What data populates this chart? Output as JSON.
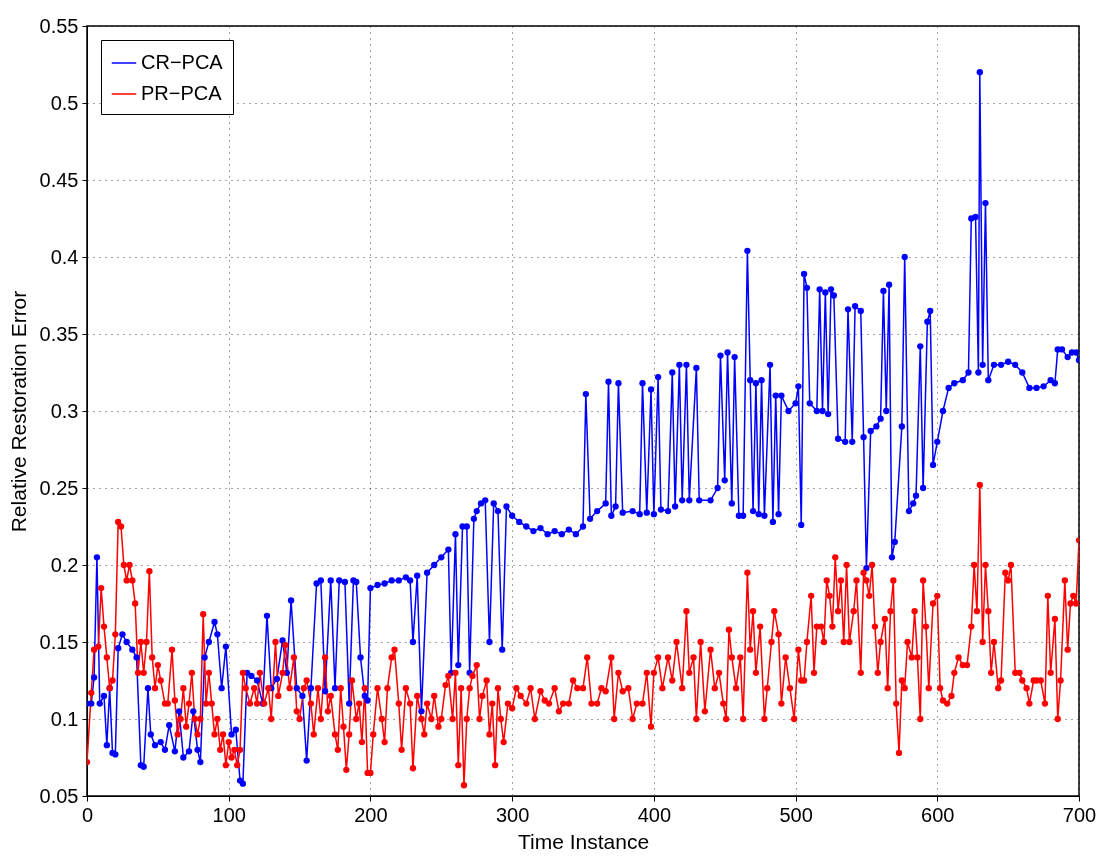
{
  "chart_data": {
    "type": "line",
    "xlabel": "Time Instance",
    "ylabel": "Relative Restoration Error",
    "xlim": [
      0,
      700
    ],
    "xticks": [
      0,
      100,
      200,
      300,
      400,
      500,
      600,
      700
    ],
    "ylim": [
      0.05,
      0.55
    ],
    "yticks": [
      0.05,
      0.1,
      0.15,
      0.2,
      0.25,
      0.3,
      0.35,
      0.4,
      0.45,
      0.5,
      0.55
    ],
    "grid": true,
    "legend": "top left",
    "marker": "circle",
    "line_style": "solid",
    "series": [
      {
        "name": "CR−PCA",
        "color": "#0000ff",
        "x": [
          0,
          3,
          5,
          7,
          9,
          12,
          14,
          16,
          18,
          20,
          22,
          25,
          28,
          32,
          35,
          38,
          40,
          43,
          45,
          48,
          52,
          55,
          58,
          62,
          65,
          68,
          72,
          75,
          78,
          80,
          83,
          86,
          90,
          92,
          95,
          98,
          102,
          105,
          108,
          110,
          113,
          116,
          120,
          124,
          127,
          130,
          134,
          138,
          141,
          144,
          148,
          152,
          155,
          158,
          162,
          165,
          168,
          172,
          175,
          178,
          182,
          185,
          188,
          190,
          193,
          196,
          198,
          200,
          205,
          210,
          215,
          220,
          225,
          228,
          230,
          233,
          236,
          240,
          245,
          250,
          255,
          257,
          260,
          262,
          265,
          268,
          270,
          273,
          275,
          278,
          281,
          284,
          287,
          290,
          293,
          296,
          300,
          305,
          310,
          315,
          320,
          325,
          330,
          335,
          340,
          345,
          350,
          352,
          355,
          360,
          366,
          368,
          370,
          373,
          375,
          378,
          385,
          390,
          392,
          395,
          398,
          400,
          403,
          405,
          410,
          413,
          415,
          418,
          420,
          423,
          425,
          430,
          432,
          440,
          445,
          447,
          450,
          452,
          455,
          457,
          460,
          463,
          466,
          468,
          470,
          472,
          474,
          476,
          478,
          482,
          484,
          486,
          488,
          490,
          495,
          500,
          502,
          504,
          506,
          508,
          510,
          515,
          517,
          519,
          521,
          523,
          525,
          527,
          530,
          535,
          537,
          540,
          542,
          546,
          548,
          550,
          553,
          557,
          560,
          562,
          564,
          566,
          568,
          570,
          575,
          577,
          580,
          583,
          585,
          588,
          590,
          593,
          595,
          597,
          600,
          604,
          608,
          612,
          618,
          622,
          624,
          627,
          629,
          630,
          632,
          634,
          636,
          640,
          645,
          650,
          655,
          660,
          665,
          670,
          675,
          680,
          683,
          685,
          688,
          692,
          695,
          698,
          700
        ],
        "values": [
          0.11,
          0.11,
          0.127,
          0.205,
          0.11,
          0.115,
          0.083,
          0.12,
          0.078,
          0.077,
          0.146,
          0.155,
          0.15,
          0.145,
          0.14,
          0.07,
          0.069,
          0.12,
          0.09,
          0.083,
          0.085,
          0.08,
          0.096,
          0.079,
          0.105,
          0.075,
          0.079,
          0.105,
          0.08,
          0.072,
          0.14,
          0.15,
          0.163,
          0.155,
          0.12,
          0.147,
          0.09,
          0.093,
          0.06,
          0.058,
          0.13,
          0.128,
          0.125,
          0.11,
          0.167,
          0.12,
          0.126,
          0.151,
          0.13,
          0.177,
          0.12,
          0.115,
          0.073,
          0.12,
          0.188,
          0.19,
          0.118,
          0.19,
          0.12,
          0.19,
          0.189,
          0.11,
          0.19,
          0.189,
          0.14,
          0.115,
          0.112,
          0.185,
          0.187,
          0.188,
          0.19,
          0.19,
          0.192,
          0.19,
          0.15,
          0.193,
          0.105,
          0.195,
          0.2,
          0.205,
          0.21,
          0.13,
          0.22,
          0.135,
          0.225,
          0.225,
          0.13,
          0.23,
          0.235,
          0.24,
          0.242,
          0.15,
          0.24,
          0.235,
          0.145,
          0.238,
          0.232,
          0.228,
          0.225,
          0.222,
          0.224,
          0.22,
          0.222,
          0.22,
          0.223,
          0.22,
          0.225,
          0.311,
          0.23,
          0.235,
          0.24,
          0.319,
          0.232,
          0.238,
          0.318,
          0.234,
          0.235,
          0.233,
          0.318,
          0.234,
          0.314,
          0.233,
          0.322,
          0.236,
          0.235,
          0.325,
          0.238,
          0.33,
          0.242,
          0.33,
          0.242,
          0.328,
          0.242,
          0.242,
          0.25,
          0.336,
          0.255,
          0.338,
          0.24,
          0.335,
          0.232,
          0.232,
          0.404,
          0.32,
          0.235,
          0.318,
          0.233,
          0.32,
          0.232,
          0.33,
          0.228,
          0.31,
          0.233,
          0.31,
          0.3,
          0.305,
          0.316,
          0.226,
          0.389,
          0.38,
          0.305,
          0.3,
          0.379,
          0.3,
          0.377,
          0.298,
          0.379,
          0.375,
          0.282,
          0.28,
          0.366,
          0.28,
          0.368,
          0.365,
          0.283,
          0.198,
          0.287,
          0.29,
          0.295,
          0.378,
          0.3,
          0.382,
          0.205,
          0.215,
          0.29,
          0.4,
          0.235,
          0.24,
          0.245,
          0.342,
          0.25,
          0.358,
          0.365,
          0.265,
          0.28,
          0.3,
          0.315,
          0.318,
          0.32,
          0.325,
          0.425,
          0.426,
          0.325,
          0.52,
          0.33,
          0.435,
          0.32,
          0.33,
          0.33,
          0.332,
          0.33,
          0.325,
          0.315,
          0.315,
          0.316,
          0.32,
          0.318,
          0.34,
          0.34,
          0.335,
          0.338,
          0.338,
          0.333
        ]
      },
      {
        "name": "PR−PCA",
        "color": "#ff0000",
        "x": [
          0,
          3,
          5,
          8,
          10,
          12,
          14,
          16,
          18,
          20,
          22,
          24,
          26,
          28,
          30,
          32,
          34,
          36,
          38,
          40,
          42,
          44,
          46,
          48,
          50,
          52,
          55,
          57,
          60,
          62,
          64,
          66,
          68,
          70,
          72,
          74,
          76,
          78,
          80,
          82,
          84,
          86,
          88,
          90,
          92,
          94,
          96,
          98,
          100,
          102,
          104,
          106,
          108,
          110,
          112,
          115,
          118,
          120,
          122,
          125,
          128,
          130,
          133,
          135,
          138,
          140,
          143,
          146,
          148,
          150,
          153,
          155,
          158,
          160,
          163,
          165,
          168,
          170,
          172,
          175,
          177,
          179,
          181,
          183,
          185,
          187,
          190,
          192,
          194,
          196,
          198,
          200,
          202,
          205,
          208,
          210,
          212,
          215,
          217,
          220,
          222,
          225,
          228,
          230,
          233,
          236,
          238,
          240,
          243,
          245,
          248,
          250,
          253,
          255,
          258,
          260,
          262,
          264,
          266,
          268,
          270,
          272,
          275,
          277,
          279,
          282,
          284,
          286,
          288,
          290,
          292,
          294,
          297,
          300,
          303,
          306,
          310,
          313,
          316,
          320,
          323,
          326,
          330,
          333,
          336,
          340,
          343,
          346,
          350,
          353,
          356,
          360,
          363,
          366,
          370,
          372,
          375,
          378,
          382,
          385,
          388,
          392,
          395,
          398,
          400,
          403,
          406,
          410,
          413,
          416,
          420,
          423,
          425,
          428,
          430,
          433,
          436,
          440,
          443,
          446,
          449,
          451,
          453,
          455,
          458,
          461,
          463,
          466,
          468,
          470,
          472,
          475,
          478,
          480,
          483,
          485,
          488,
          490,
          493,
          496,
          499,
          502,
          504,
          506,
          508,
          511,
          513,
          515,
          518,
          520,
          522,
          524,
          526,
          528,
          530,
          532,
          534,
          536,
          538,
          541,
          543,
          546,
          548,
          550,
          552,
          554,
          556,
          558,
          560,
          563,
          565,
          567,
          569,
          571,
          573,
          575,
          577,
          579,
          582,
          584,
          586,
          588,
          590,
          592,
          594,
          597,
          600,
          602,
          604,
          607,
          610,
          612,
          615,
          618,
          621,
          624,
          626,
          628,
          630,
          632,
          634,
          636,
          638,
          640,
          643,
          645,
          648,
          650,
          652,
          655,
          658,
          660,
          663,
          665,
          668,
          670,
          673,
          676,
          678,
          680,
          683,
          685,
          687,
          690,
          692,
          694,
          696,
          698,
          700
        ],
        "values": [
          0.072,
          0.117,
          0.145,
          0.147,
          0.185,
          0.16,
          0.14,
          0.12,
          0.125,
          0.155,
          0.228,
          0.225,
          0.2,
          0.19,
          0.2,
          0.19,
          0.175,
          0.13,
          0.15,
          0.13,
          0.15,
          0.196,
          0.14,
          0.12,
          0.135,
          0.125,
          0.11,
          0.11,
          0.145,
          0.112,
          0.09,
          0.1,
          0.12,
          0.095,
          0.11,
          0.13,
          0.1,
          0.09,
          0.1,
          0.168,
          0.11,
          0.13,
          0.11,
          0.09,
          0.1,
          0.08,
          0.09,
          0.07,
          0.085,
          0.075,
          0.08,
          0.07,
          0.08,
          0.13,
          0.12,
          0.11,
          0.12,
          0.11,
          0.13,
          0.11,
          0.12,
          0.1,
          0.15,
          0.115,
          0.13,
          0.148,
          0.12,
          0.14,
          0.105,
          0.1,
          0.12,
          0.125,
          0.11,
          0.09,
          0.12,
          0.1,
          0.14,
          0.105,
          0.115,
          0.09,
          0.08,
          0.12,
          0.095,
          0.067,
          0.09,
          0.125,
          0.1,
          0.11,
          0.085,
          0.12,
          0.065,
          0.065,
          0.09,
          0.12,
          0.1,
          0.085,
          0.12,
          0.14,
          0.145,
          0.11,
          0.08,
          0.12,
          0.11,
          0.068,
          0.115,
          0.1,
          0.09,
          0.11,
          0.1,
          0.115,
          0.095,
          0.1,
          0.122,
          0.128,
          0.1,
          0.13,
          0.07,
          0.12,
          0.057,
          0.1,
          0.12,
          0.128,
          0.135,
          0.1,
          0.115,
          0.125,
          0.09,
          0.11,
          0.07,
          0.12,
          0.1,
          0.085,
          0.11,
          0.107,
          0.12,
          0.115,
          0.11,
          0.12,
          0.1,
          0.118,
          0.112,
          0.11,
          0.12,
          0.105,
          0.11,
          0.11,
          0.125,
          0.12,
          0.12,
          0.14,
          0.11,
          0.11,
          0.12,
          0.118,
          0.14,
          0.1,
          0.13,
          0.118,
          0.12,
          0.1,
          0.11,
          0.11,
          0.13,
          0.095,
          0.13,
          0.14,
          0.12,
          0.14,
          0.125,
          0.15,
          0.12,
          0.17,
          0.13,
          0.14,
          0.1,
          0.15,
          0.105,
          0.145,
          0.12,
          0.13,
          0.11,
          0.1,
          0.158,
          0.14,
          0.12,
          0.14,
          0.1,
          0.195,
          0.145,
          0.17,
          0.13,
          0.16,
          0.1,
          0.12,
          0.15,
          0.17,
          0.155,
          0.11,
          0.14,
          0.12,
          0.1,
          0.145,
          0.125,
          0.125,
          0.15,
          0.18,
          0.13,
          0.16,
          0.16,
          0.15,
          0.19,
          0.18,
          0.16,
          0.205,
          0.17,
          0.19,
          0.15,
          0.2,
          0.15,
          0.17,
          0.19,
          0.13,
          0.195,
          0.19,
          0.18,
          0.2,
          0.16,
          0.13,
          0.15,
          0.165,
          0.12,
          0.17,
          0.19,
          0.11,
          0.078,
          0.125,
          0.12,
          0.15,
          0.14,
          0.17,
          0.14,
          0.1,
          0.19,
          0.16,
          0.12,
          0.175,
          0.18,
          0.12,
          0.112,
          0.11,
          0.115,
          0.13,
          0.14,
          0.135,
          0.135,
          0.16,
          0.2,
          0.17,
          0.252,
          0.15,
          0.2,
          0.17,
          0.13,
          0.15,
          0.12,
          0.125,
          0.195,
          0.19,
          0.2,
          0.13,
          0.13,
          0.125,
          0.12,
          0.11,
          0.125,
          0.125,
          0.125,
          0.11,
          0.18,
          0.13,
          0.165,
          0.1,
          0.125,
          0.19,
          0.145,
          0.175,
          0.18,
          0.175,
          0.216
        ]
      }
    ]
  }
}
